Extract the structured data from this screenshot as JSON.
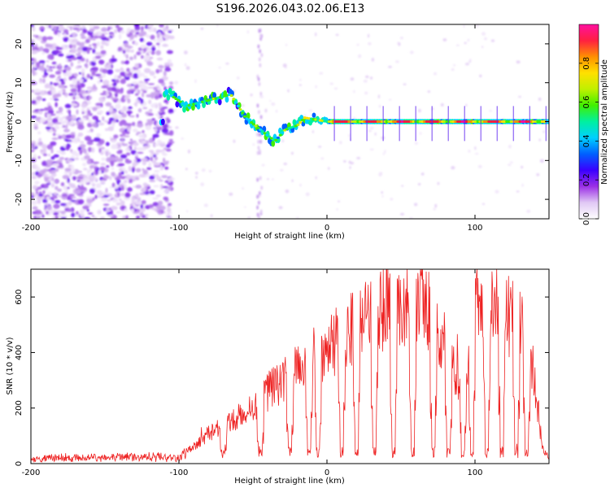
{
  "title": "S196.2026.043.02.06.E13",
  "chart_data": [
    {
      "type": "heatmap",
      "name": "spectrogram",
      "xlabel": "Height of straight line (km)",
      "ylabel": "Frequency (Hz)",
      "xlim": [
        -200,
        150
      ],
      "ylim": [
        -25,
        25
      ],
      "x_ticks": [
        -200,
        -100,
        0,
        100
      ],
      "y_ticks": [
        -20,
        -10,
        0,
        10,
        20
      ],
      "colorbar": {
        "label": "Normalized spectral amplitude",
        "range": [
          0.0,
          1.0
        ],
        "ticks": [
          0.0,
          0.2,
          0.4,
          0.6,
          0.8
        ],
        "tick_labels": [
          "0.0",
          "0.2",
          "0.4",
          "0.6",
          "0.8"
        ],
        "colors": [
          "#ffffff",
          "#e0c8f4",
          "#9b30e6",
          "#3a00ff",
          "#0060ff",
          "#00d0ff",
          "#00f0a0",
          "#40f000",
          "#c0f000",
          "#ffe000",
          "#ff9000",
          "#ff2040",
          "#ff10a0"
        ]
      },
      "ridge": [
        {
          "x": -110,
          "f": 8
        },
        {
          "x": -95,
          "f": 4
        },
        {
          "x": -75,
          "f": 6
        },
        {
          "x": -65,
          "f": 7
        },
        {
          "x": -55,
          "f": 1
        },
        {
          "x": -42,
          "f": -3
        },
        {
          "x": -35,
          "f": -5
        },
        {
          "x": -28,
          "f": -2
        },
        {
          "x": -20,
          "f": -1
        },
        {
          "x": -15,
          "f": 1
        },
        {
          "x": 0,
          "f": 0
        },
        {
          "x": 150,
          "f": 0
        }
      ]
    },
    {
      "type": "line",
      "name": "snr",
      "xlabel": "Height of straight line (km)",
      "ylabel": "SNR (10 * v/v)",
      "xlim": [
        -200,
        150
      ],
      "ylim": [
        0,
        700
      ],
      "x_ticks": [
        -200,
        -100,
        0,
        100
      ],
      "y_ticks": [
        0,
        200,
        400,
        600
      ],
      "color": "#ee2222",
      "envelope": [
        {
          "x": -200,
          "y": 20
        },
        {
          "x": -100,
          "y": 25
        },
        {
          "x": -90,
          "y": 60
        },
        {
          "x": -80,
          "y": 110
        },
        {
          "x": -65,
          "y": 150
        },
        {
          "x": -50,
          "y": 200
        },
        {
          "x": -40,
          "y": 260
        },
        {
          "x": -30,
          "y": 300
        },
        {
          "x": -20,
          "y": 340
        },
        {
          "x": -10,
          "y": 380
        },
        {
          "x": 0,
          "y": 410
        },
        {
          "x": 10,
          "y": 450
        },
        {
          "x": 20,
          "y": 500
        },
        {
          "x": 30,
          "y": 540
        },
        {
          "x": 40,
          "y": 560
        },
        {
          "x": 50,
          "y": 580
        },
        {
          "x": 60,
          "y": 590
        },
        {
          "x": 65,
          "y": 580
        },
        {
          "x": 75,
          "y": 480
        },
        {
          "x": 80,
          "y": 420
        },
        {
          "x": 88,
          "y": 300
        },
        {
          "x": 95,
          "y": 300
        },
        {
          "x": 100,
          "y": 560
        },
        {
          "x": 105,
          "y": 620
        },
        {
          "x": 115,
          "y": 580
        },
        {
          "x": 125,
          "y": 520
        },
        {
          "x": 135,
          "y": 500
        },
        {
          "x": 140,
          "y": 300
        },
        {
          "x": 145,
          "y": 60
        },
        {
          "x": 150,
          "y": 20
        }
      ],
      "dips": [
        -70,
        -45,
        -25,
        -12,
        -6,
        10,
        20,
        32,
        45,
        58,
        72,
        82,
        92,
        98,
        108,
        118,
        128,
        135
      ]
    }
  ]
}
